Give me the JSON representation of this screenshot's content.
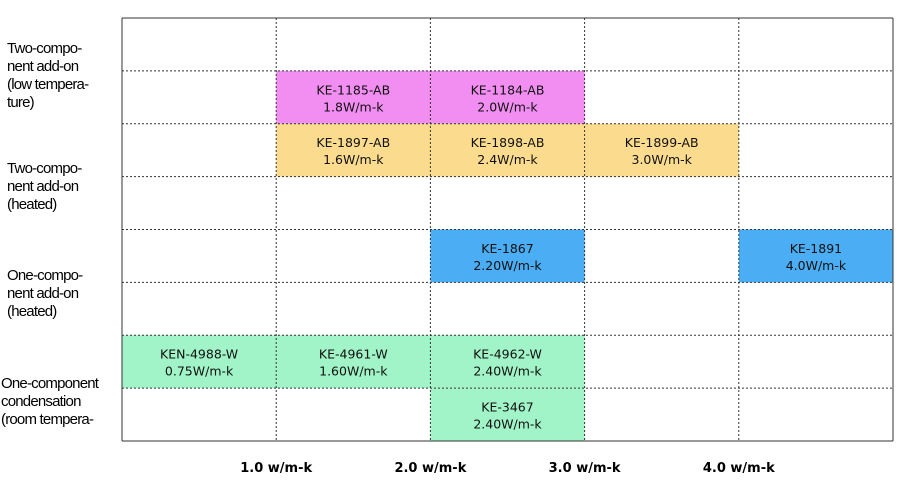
{
  "chart_data": {
    "type": "table",
    "rows": [
      {
        "label": "Two-compo-\nnent add-on\n(low tempera-\nture)",
        "subrows": 2
      },
      {
        "label": "Two-compo-\nnent add-on\n(heated)",
        "subrows": 2
      },
      {
        "label": "One-compo-\nnent add-on\n(heated)",
        "subrows": 2
      },
      {
        "label": "One-component\ncondensation\n(room tempera-",
        "subrows": 2
      }
    ],
    "columns": 5,
    "x_tick_labels": [
      "1.0 w/m-k",
      "2.0 w/m-k",
      "3.0 w/m-k",
      "4.0 w/m-k"
    ],
    "products": [
      {
        "name": "KE-1185-AB",
        "value": "1.8W/m-k",
        "row": 0,
        "subrow": 1,
        "col": 1,
        "color": "#f28ef2"
      },
      {
        "name": "KE-1184-AB",
        "value": "2.0W/m-k",
        "row": 0,
        "subrow": 1,
        "col": 2,
        "color": "#f28ef2"
      },
      {
        "name": "KE-1897-AB",
        "value": "1.6W/m-k",
        "row": 1,
        "subrow": 0,
        "col": 1,
        "color": "#fbdc8e"
      },
      {
        "name": "KE-1898-AB",
        "value": "2.4W/m-k",
        "row": 1,
        "subrow": 0,
        "col": 2,
        "color": "#fbdc8e"
      },
      {
        "name": "KE-1899-AB",
        "value": "3.0W/m-k",
        "row": 1,
        "subrow": 0,
        "col": 3,
        "color": "#fbdc8e"
      },
      {
        "name": "KE-1867",
        "value": "2.20W/m-k",
        "row": 2,
        "subrow": 0,
        "col": 2,
        "color": "#4badf4"
      },
      {
        "name": "KE-1891",
        "value": "4.0W/m-k",
        "row": 2,
        "subrow": 0,
        "col": 4,
        "color": "#4badf4"
      },
      {
        "name": "KEN-4988-W",
        "value": "0.75W/m-k",
        "row": 3,
        "subrow": 0,
        "col": 0,
        "color": "#a1f4c8"
      },
      {
        "name": "KE-4961-W",
        "value": "1.60W/m-k",
        "row": 3,
        "subrow": 0,
        "col": 1,
        "color": "#a1f4c8"
      },
      {
        "name": "KE-4962-W",
        "value": "2.40W/m-k",
        "row": 3,
        "subrow": 0,
        "col": 2,
        "color": "#a1f4c8"
      },
      {
        "name": "KE-3467",
        "value": "2.40W/m-k",
        "row": 3,
        "subrow": 1,
        "col": 2,
        "color": "#a1f4c8"
      }
    ],
    "grid": true,
    "grid_color": "#333333"
  }
}
